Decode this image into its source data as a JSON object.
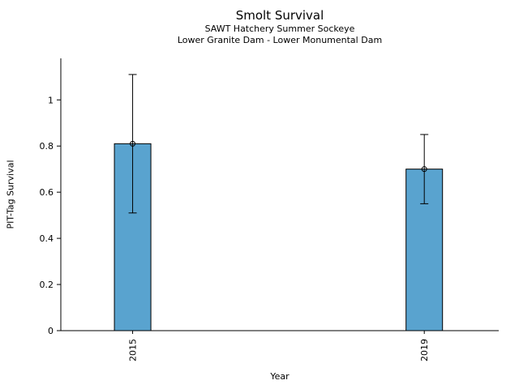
{
  "chart_data": {
    "type": "bar",
    "title": "Smolt Survival",
    "subtitle": [
      "SAWT Hatchery Summer Sockeye",
      "Lower Granite Dam - Lower Monumental Dam"
    ],
    "xlabel": "Year",
    "ylabel": "PIT-Tag Survival",
    "categories": [
      "2015",
      "2019"
    ],
    "values": [
      0.81,
      0.7
    ],
    "error_bars": {
      "low": [
        0.51,
        0.55
      ],
      "high": [
        1.11,
        0.85
      ]
    },
    "ytick_values": [
      0,
      0.2,
      0.4,
      0.6,
      0.8,
      1
    ],
    "ytick_labels": [
      "0",
      "0.2",
      "0.4",
      "0.6",
      "0.8",
      "1"
    ],
    "ylim": [
      0,
      1.18
    ],
    "grid": false,
    "legend": null,
    "bar_color": "#59a3cf",
    "bar_edge_color": "#000000",
    "axis_color": "#000000",
    "marker": "open-circle"
  }
}
